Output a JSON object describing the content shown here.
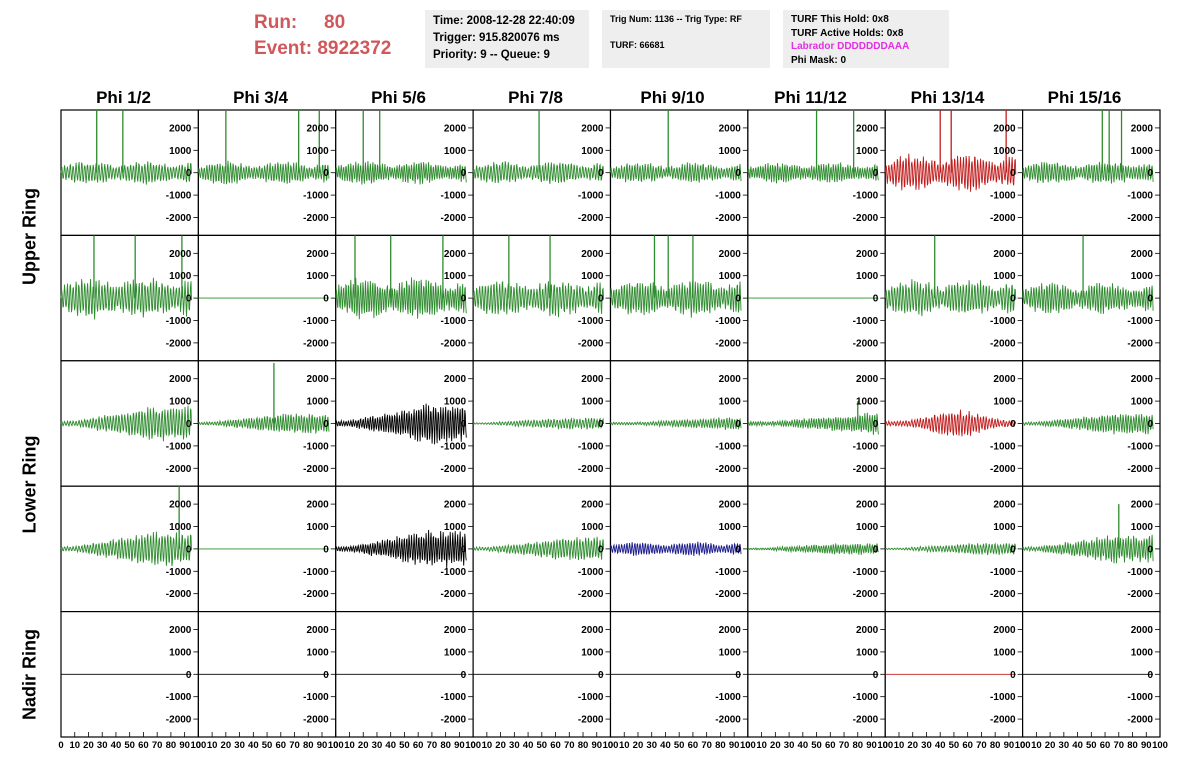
{
  "header": {
    "run_label": "Run:",
    "run_value": "80",
    "event_label": "Event:",
    "event_value": "8922372",
    "time": "Time: 2008-12-28 22:40:09",
    "trigger": "Trigger: 915.820076 ms",
    "priority": "Priority: 9 -- Queue: 9",
    "trig_num": "Trig Num: 1136 -- Trig Type: RF",
    "turf": "TURF: 66681",
    "turf_this_hold": "TURF This Hold: 0x8",
    "turf_active_holds": "TURF Active Holds: 0x8",
    "labrador": "Labrador DDDDDDDAAA",
    "phi_mask": "Phi Mask: 0"
  },
  "columns": [
    "Phi 1/2",
    "Phi 3/4",
    "Phi 5/6",
    "Phi 7/8",
    "Phi 9/10",
    "Phi 11/12",
    "Phi 13/14",
    "Phi 15/16"
  ],
  "rows": [
    "Upper Ring",
    "Lower Ring",
    "Nadir Ring"
  ],
  "colors": {
    "green": "#2e8b2e",
    "red": "#c01c1c",
    "black": "#000000",
    "blue": "#1c1c8c",
    "header_red": "#d0585a",
    "magenta": "#e42ee4"
  },
  "chart_data": {
    "type": "line",
    "xlim": [
      0,
      100
    ],
    "ylim": [
      -2800,
      2800
    ],
    "x_ticks": [
      0,
      10,
      20,
      30,
      40,
      50,
      60,
      70,
      80,
      90,
      100
    ],
    "x_tick_labels": [
      "0",
      "10",
      "20",
      "30",
      "40",
      "50",
      "60",
      "70",
      "80",
      "90",
      "100"
    ],
    "y_ticks": [
      2000,
      1000,
      0,
      -1000,
      -2000
    ],
    "y_tick_labels": [
      "2000",
      "1000",
      "0",
      "-1000",
      "-2000"
    ],
    "panels": [
      [
        {
          "color": "green",
          "amp": 500,
          "env": "flat",
          "spikes": [
            [
              26,
              2800
            ],
            [
              45,
              2800
            ]
          ]
        },
        {
          "color": "green",
          "amp": 500,
          "env": "flat",
          "spikes": [
            [
              20,
              2800
            ],
            [
              73,
              2800
            ],
            [
              88,
              2800
            ]
          ]
        },
        {
          "color": "green",
          "amp": 500,
          "env": "flat",
          "spikes": [
            [
              20,
              2800
            ],
            [
              32,
              2800
            ]
          ]
        },
        {
          "color": "green",
          "amp": 500,
          "env": "flat",
          "spikes": [
            [
              48,
              2800
            ]
          ]
        },
        {
          "color": "green",
          "amp": 450,
          "env": "flat",
          "spikes": [
            [
              42,
              2800
            ]
          ]
        },
        {
          "color": "green",
          "amp": 450,
          "env": "flat",
          "spikes": [
            [
              50,
              2800
            ],
            [
              77,
              2800
            ]
          ]
        },
        {
          "color": "red",
          "amp": 800,
          "env": "flat",
          "spikes": [
            [
              40,
              2800
            ],
            [
              48,
              2800
            ],
            [
              88,
              2800
            ]
          ]
        },
        {
          "color": "green",
          "amp": 500,
          "env": "flat",
          "spikes": [
            [
              58,
              2800
            ],
            [
              63,
              2800
            ],
            [
              72,
              2800
            ]
          ]
        }
      ],
      [
        {
          "color": "green",
          "amp": 900,
          "env": "flat",
          "spikes": [
            [
              24,
              2800
            ],
            [
              54,
              2800
            ],
            [
              88,
              2800
            ]
          ]
        },
        {
          "color": "green",
          "amp": 0,
          "env": "flat",
          "spikes": []
        },
        {
          "color": "green",
          "amp": 900,
          "env": "flat",
          "spikes": [
            [
              14,
              2800
            ],
            [
              40,
              2800
            ],
            [
              78,
              2800
            ]
          ]
        },
        {
          "color": "green",
          "amp": 800,
          "env": "flat",
          "spikes": [
            [
              26,
              2800
            ],
            [
              56,
              2800
            ]
          ]
        },
        {
          "color": "green",
          "amp": 800,
          "env": "flat",
          "spikes": [
            [
              32,
              2800
            ],
            [
              42,
              2800
            ],
            [
              60,
              2800
            ]
          ]
        },
        {
          "color": "green",
          "amp": 0,
          "env": "flat",
          "spikes": []
        },
        {
          "color": "green",
          "amp": 800,
          "env": "flat",
          "spikes": [
            [
              36,
              2800
            ]
          ]
        },
        {
          "color": "green",
          "amp": 700,
          "env": "flat",
          "spikes": [
            [
              44,
              2800
            ]
          ]
        }
      ],
      [
        {
          "color": "green",
          "amp": 750,
          "env": "grow",
          "spikes": []
        },
        {
          "color": "green",
          "amp": 450,
          "env": "grow",
          "spikes": [
            [
              55,
              2700
            ]
          ]
        },
        {
          "color": "black",
          "amp": 850,
          "env": "grow",
          "spikes": []
        },
        {
          "color": "green",
          "amp": 250,
          "env": "grow",
          "spikes": []
        },
        {
          "color": "green",
          "amp": 300,
          "env": "late",
          "spikes": []
        },
        {
          "color": "green",
          "amp": 500,
          "env": "late",
          "spikes": [
            [
              80,
              1000
            ]
          ]
        },
        {
          "color": "red",
          "amp": 600,
          "env": "mid",
          "spikes": []
        },
        {
          "color": "green",
          "amp": 450,
          "env": "grow",
          "spikes": []
        }
      ],
      [
        {
          "color": "green",
          "amp": 750,
          "env": "grow",
          "spikes": [
            [
              86,
              2800
            ]
          ]
        },
        {
          "color": "green",
          "amp": 0,
          "env": "flat",
          "spikes": []
        },
        {
          "color": "black",
          "amp": 800,
          "env": "grow",
          "spikes": []
        },
        {
          "color": "green",
          "amp": 500,
          "env": "grow",
          "spikes": []
        },
        {
          "color": "blue",
          "amp": 300,
          "env": "flat",
          "spikes": []
        },
        {
          "color": "green",
          "amp": 250,
          "env": "grow",
          "spikes": []
        },
        {
          "color": "green",
          "amp": 250,
          "env": "grow",
          "spikes": []
        },
        {
          "color": "green",
          "amp": 600,
          "env": "grow",
          "spikes": [
            [
              70,
              2000
            ]
          ]
        }
      ],
      [
        {
          "color": "black",
          "amp": 0,
          "env": "flat",
          "spikes": []
        },
        {
          "color": "black",
          "amp": 0,
          "env": "flat",
          "spikes": []
        },
        {
          "color": "black",
          "amp": 0,
          "env": "flat",
          "spikes": []
        },
        {
          "color": "black",
          "amp": 0,
          "env": "flat",
          "spikes": []
        },
        {
          "color": "black",
          "amp": 0,
          "env": "flat",
          "spikes": []
        },
        {
          "color": "black",
          "amp": 0,
          "env": "flat",
          "spikes": []
        },
        {
          "color": "red",
          "amp": 0,
          "env": "flat",
          "spikes": []
        },
        {
          "color": "black",
          "amp": 0,
          "env": "flat",
          "spikes": []
        }
      ]
    ]
  }
}
